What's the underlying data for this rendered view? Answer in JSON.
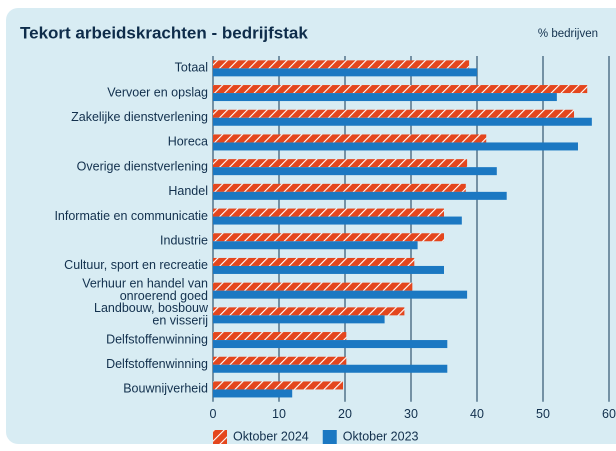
{
  "chart_data": {
    "type": "hbar",
    "title": "Tekort arbeidskrachten - bedrijfstak",
    "unit_label": "% bedrijven",
    "categories": [
      "Totaal",
      "Vervoer en opslag",
      "Zakelijke dienstverlening",
      "Horeca",
      "Overige dienstverlening",
      "Handel",
      "Informatie en communicatie",
      "Industrie",
      "Cultuur, sport en recreatie",
      "Verhuur en handel van\nonroerend goed",
      "Landbouw, bosbouw\nen visserij",
      "Delfstoffenwinning",
      "Delfstoffenwinning",
      "Bouwnijverheid"
    ],
    "series": [
      {
        "name": "Oktober 2024",
        "color": "#e4461d",
        "hatch": true,
        "values": [
          38.8,
          56.7,
          54.7,
          41.4,
          38.5,
          38.3,
          35,
          35,
          30.5,
          30.2,
          29,
          20.2,
          20.2,
          19.7
        ]
      },
      {
        "name": "Oktober 2023",
        "color": "#1b78c2",
        "hatch": false,
        "values": [
          40,
          52.1,
          57.4,
          55.3,
          43,
          44.5,
          37.7,
          31,
          35,
          38.5,
          26,
          35.5,
          35.5,
          12
        ]
      }
    ],
    "xlim": [
      0,
      60
    ],
    "xticks": [
      0,
      10,
      20,
      30,
      40,
      50,
      60
    ],
    "grid": true,
    "legend": "bottom"
  }
}
